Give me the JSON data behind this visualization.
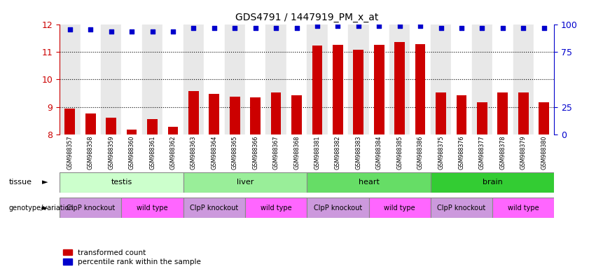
{
  "title": "GDS4791 / 1447919_PM_x_at",
  "samples": [
    "GSM988357",
    "GSM988358",
    "GSM988359",
    "GSM988360",
    "GSM988361",
    "GSM988362",
    "GSM988363",
    "GSM988364",
    "GSM988365",
    "GSM988366",
    "GSM988367",
    "GSM988368",
    "GSM988381",
    "GSM988382",
    "GSM988383",
    "GSM988384",
    "GSM988385",
    "GSM988386",
    "GSM988375",
    "GSM988376",
    "GSM988377",
    "GSM988378",
    "GSM988379",
    "GSM988380"
  ],
  "bar_values": [
    8.95,
    8.77,
    8.62,
    8.18,
    8.55,
    8.28,
    9.57,
    9.47,
    9.38,
    9.35,
    9.52,
    9.43,
    11.22,
    11.25,
    11.08,
    11.25,
    11.35,
    11.28,
    9.52,
    9.42,
    9.18,
    9.52,
    9.52,
    9.18
  ],
  "percentile_values": [
    11.8,
    11.8,
    11.73,
    11.73,
    11.73,
    11.73,
    11.87,
    11.87,
    11.87,
    11.87,
    11.87,
    11.87,
    11.93,
    11.93,
    11.93,
    11.93,
    11.93,
    11.93,
    11.87,
    11.87,
    11.87,
    11.87,
    11.87,
    11.87
  ],
  "ylim": [
    8.0,
    12.0
  ],
  "yticks": [
    8,
    9,
    10,
    11,
    12
  ],
  "right_yticks_labels": [
    "0",
    "25",
    "75",
    "100"
  ],
  "right_ytick_positions": [
    8.0,
    9.0,
    11.0,
    12.0
  ],
  "bar_color": "#cc0000",
  "dot_color": "#0000cc",
  "tissues": [
    {
      "label": "testis",
      "start": 0,
      "end": 6,
      "color": "#ccffcc"
    },
    {
      "label": "liver",
      "start": 6,
      "end": 12,
      "color": "#99ee99"
    },
    {
      "label": "heart",
      "start": 12,
      "end": 18,
      "color": "#66dd66"
    },
    {
      "label": "brain",
      "start": 18,
      "end": 24,
      "color": "#33cc33"
    }
  ],
  "genotypes": [
    {
      "label": "ClpP knockout",
      "start": 0,
      "end": 3,
      "color": "#cc99dd"
    },
    {
      "label": "wild type",
      "start": 3,
      "end": 6,
      "color": "#ff66ff"
    },
    {
      "label": "ClpP knockout",
      "start": 6,
      "end": 9,
      "color": "#cc99dd"
    },
    {
      "label": "wild type",
      "start": 9,
      "end": 12,
      "color": "#ff66ff"
    },
    {
      "label": "ClpP knockout",
      "start": 12,
      "end": 15,
      "color": "#cc99dd"
    },
    {
      "label": "wild type",
      "start": 15,
      "end": 18,
      "color": "#ff66ff"
    },
    {
      "label": "ClpP knockout",
      "start": 18,
      "end": 21,
      "color": "#cc99dd"
    },
    {
      "label": "wild type",
      "start": 21,
      "end": 24,
      "color": "#ff66ff"
    }
  ],
  "bg_colors": [
    "#e8e8e8",
    "#ffffff"
  ],
  "left_axis_color": "#cc0000",
  "right_axis_color": "#0000cc",
  "title_color": "#000000"
}
